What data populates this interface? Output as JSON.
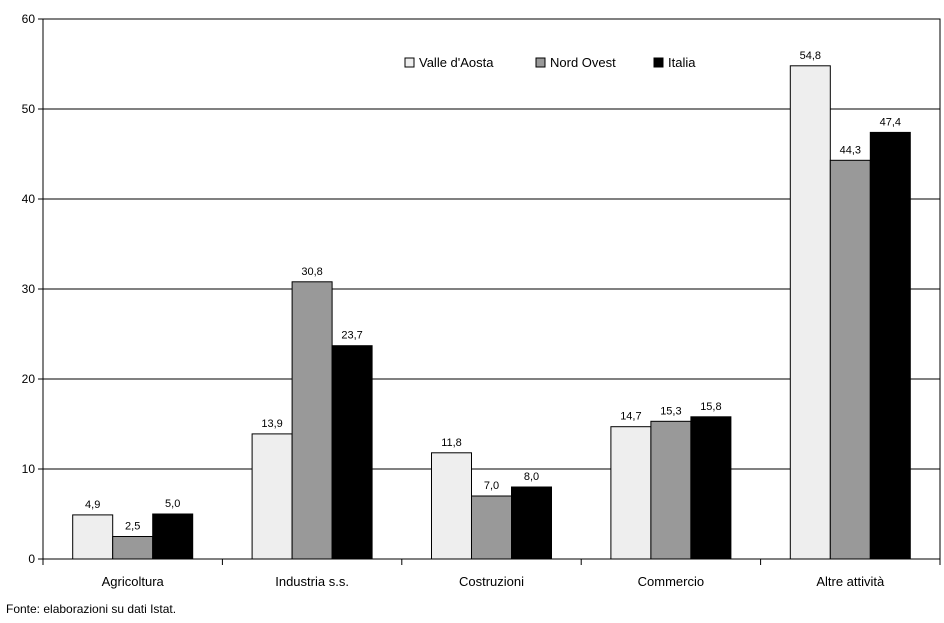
{
  "chart_data": {
    "type": "bar",
    "categories": [
      "Agricoltura",
      "Industria s.s.",
      "Costruzioni",
      "Commercio",
      "Altre attività"
    ],
    "series": [
      {
        "name": "Valle d'Aosta",
        "values": [
          4.9,
          13.9,
          11.8,
          14.7,
          54.8
        ],
        "labels": [
          "4,9",
          "13,9",
          "11,8",
          "14,7",
          "54,8"
        ],
        "color": "#eeeeee"
      },
      {
        "name": "Nord Ovest",
        "values": [
          2.5,
          30.8,
          7.0,
          15.3,
          44.3
        ],
        "labels": [
          "2,5",
          "30,8",
          "7,0",
          "15,3",
          "44,3"
        ],
        "color": "#999999"
      },
      {
        "name": "Italia",
        "values": [
          5.0,
          23.7,
          8.0,
          15.8,
          47.4
        ],
        "labels": [
          "5,0",
          "23,7",
          "8,0",
          "15,8",
          "47,4"
        ],
        "color": "#000000"
      }
    ],
    "ylim": [
      0,
      60
    ],
    "yticks": [
      "0",
      "10",
      "20",
      "30",
      "40",
      "50",
      "60"
    ],
    "grid": true,
    "legend": "top-right"
  },
  "source_note": "Fonte: elaborazioni su dati Istat."
}
